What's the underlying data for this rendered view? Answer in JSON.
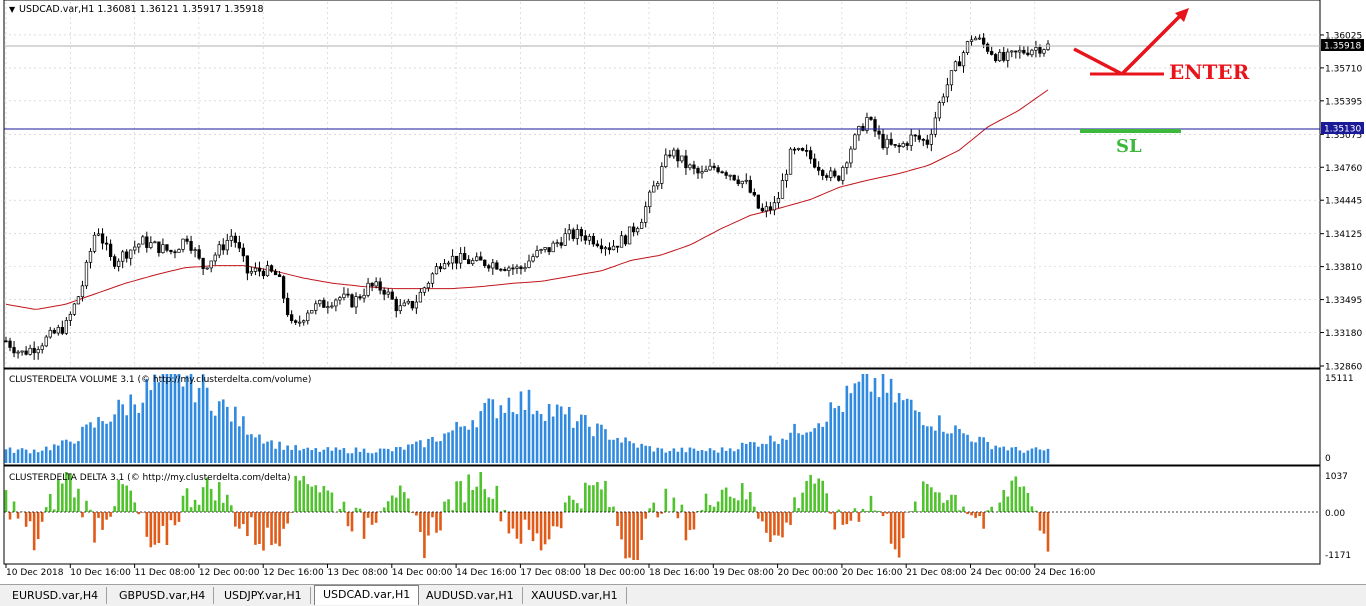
{
  "main_chart": {
    "header": "USDCAD.var,H1  1.36081 1.36121 1.35917 1.35918",
    "price_ticks": [
      "1.36025",
      "1.35710",
      "1.35395",
      "1.35075",
      "1.34760",
      "1.34445",
      "1.34125",
      "1.33810",
      "1.33495",
      "1.33180",
      "1.32860"
    ],
    "current_price": "1.35918",
    "sl_price": "1.35130",
    "annotation_enter": "ENTER",
    "annotation_sl": "SL",
    "colors": {
      "enter": "#e8141b",
      "sl": "#3cb93c",
      "ma": "#c0151b",
      "sl_line": "#1a1a99",
      "candle": "#000000"
    }
  },
  "volume_panel": {
    "title": "CLUSTERDELTA VOLUME 3.1 (© http://my.clusterdelta.com/volume)",
    "ticks": [
      "15111",
      "0"
    ],
    "bar_color": "#2f8ae0"
  },
  "delta_panel": {
    "title": "CLUSTERDELTA DELTA 3.1 (© http://my.clusterdelta.com/delta)",
    "ticks": [
      "1037",
      "0.00",
      "-1171"
    ],
    "pos_color": "#4fc32b",
    "neg_color": "#e05a18"
  },
  "time_axis": [
    "10 Dec 2018",
    "10 Dec 16:00",
    "11 Dec 08:00",
    "12 Dec 00:00",
    "12 Dec 16:00",
    "13 Dec 08:00",
    "14 Dec 00:00",
    "14 Dec 16:00",
    "17 Dec 08:00",
    "18 Dec 00:00",
    "18 Dec 16:00",
    "19 Dec 08:00",
    "20 Dec 00:00",
    "20 Dec 16:00",
    "21 Dec 08:00",
    "24 Dec 00:00",
    "24 Dec 16:00"
  ],
  "tabs": [
    {
      "label": "EURUSD.var,H4",
      "active": false
    },
    {
      "label": "GBPUSD.var,H4",
      "active": false
    },
    {
      "label": "USDJPY.var,H1",
      "active": false
    },
    {
      "label": "USDCAD.var,H1",
      "active": true
    },
    {
      "label": "AUDUSD.var,H1",
      "active": false
    },
    {
      "label": "XAUUSD.var,H1",
      "active": false
    }
  ],
  "chart_data": {
    "type": "candlestick",
    "symbol": "USDCAD.var,H1",
    "ylim": [
      1.3286,
      1.3634
    ],
    "close_anchors": [
      1.331,
      1.3298,
      1.3305,
      1.3315,
      1.3325,
      1.336,
      1.342,
      1.3385,
      1.3395,
      1.3405,
      1.34,
      1.3395,
      1.341,
      1.338,
      1.3395,
      1.3412,
      1.3375,
      1.3378,
      1.3372,
      1.332,
      1.334,
      1.3345,
      1.3352,
      1.3347,
      1.3362,
      1.336,
      1.334,
      1.3345,
      1.3368,
      1.339,
      1.3388,
      1.3385,
      1.3385,
      1.3382,
      1.3378,
      1.3392,
      1.3398,
      1.341,
      1.3412,
      1.3407,
      1.34,
      1.3408,
      1.3425,
      1.346,
      1.3492,
      1.3478,
      1.3468,
      1.3477,
      1.347,
      1.346,
      1.3432,
      1.344,
      1.349,
      1.3488,
      1.3475,
      1.3463,
      1.3497,
      1.3523,
      1.35,
      1.3493,
      1.3505,
      1.35,
      1.3545,
      1.3575,
      1.3602,
      1.359,
      1.3578,
      1.3585,
      1.359,
      1.3592
    ],
    "ma_anchors": [
      1.3345,
      1.334,
      1.3345,
      1.3355,
      1.3365,
      1.3373,
      1.338,
      1.3382,
      1.3382,
      1.3377,
      1.337,
      1.3365,
      1.3362,
      1.336,
      1.336,
      1.336,
      1.3362,
      1.3365,
      1.3367,
      1.3372,
      1.3377,
      1.3387,
      1.3392,
      1.3402,
      1.3417,
      1.343,
      1.3437,
      1.3445,
      1.3457,
      1.3464,
      1.347,
      1.3478,
      1.3492,
      1.3515,
      1.353,
      1.355
    ],
    "levels": {
      "stop_loss": 1.3513,
      "current": 1.35918
    },
    "volume_max": 15111,
    "volume_pattern": [
      2,
      2,
      3,
      6,
      9,
      12,
      14,
      10,
      6,
      3,
      2,
      2,
      2,
      2,
      3,
      5,
      8,
      10,
      9,
      7,
      5,
      3,
      2,
      2,
      2,
      3,
      4,
      6,
      9,
      13,
      10,
      7,
      5,
      3,
      2,
      2
    ],
    "delta_range": [
      -1171,
      1037
    ],
    "delta_pattern": [
      1,
      -2,
      3,
      -1,
      2,
      -3,
      1,
      2,
      -1,
      -2,
      3,
      1,
      -1,
      2,
      -2,
      1,
      3,
      -1,
      -2,
      1,
      2,
      -3,
      1,
      -1,
      2,
      1,
      -2,
      3,
      -1,
      1,
      -2,
      2,
      1,
      -1,
      3,
      -2
    ]
  }
}
